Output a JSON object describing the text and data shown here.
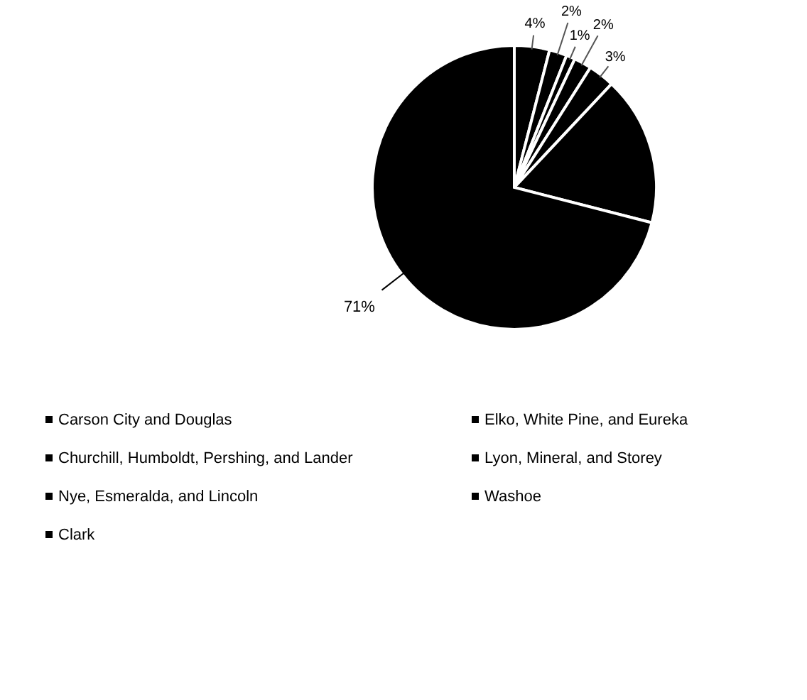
{
  "chart_data": {
    "type": "pie",
    "categories": [
      "Carson City and Douglas",
      "Elko, White Pine, and Eureka",
      "Churchill, Humboldt, Pershing, and Lander",
      "Lyon, Mineral, and Storey",
      "Nye, Esmeralda, and Lincoln",
      "Washoe",
      "Clark"
    ],
    "values": [
      4,
      2,
      1,
      2,
      3,
      17,
      71
    ],
    "colors": [
      "#000000",
      "#000000",
      "#000000",
      "#000000",
      "#000000",
      "#000000",
      "#000000"
    ],
    "value_labels": [
      "4%",
      "2%",
      "1%",
      "2%",
      "3%",
      null,
      "71%"
    ],
    "legend": "bottom"
  }
}
